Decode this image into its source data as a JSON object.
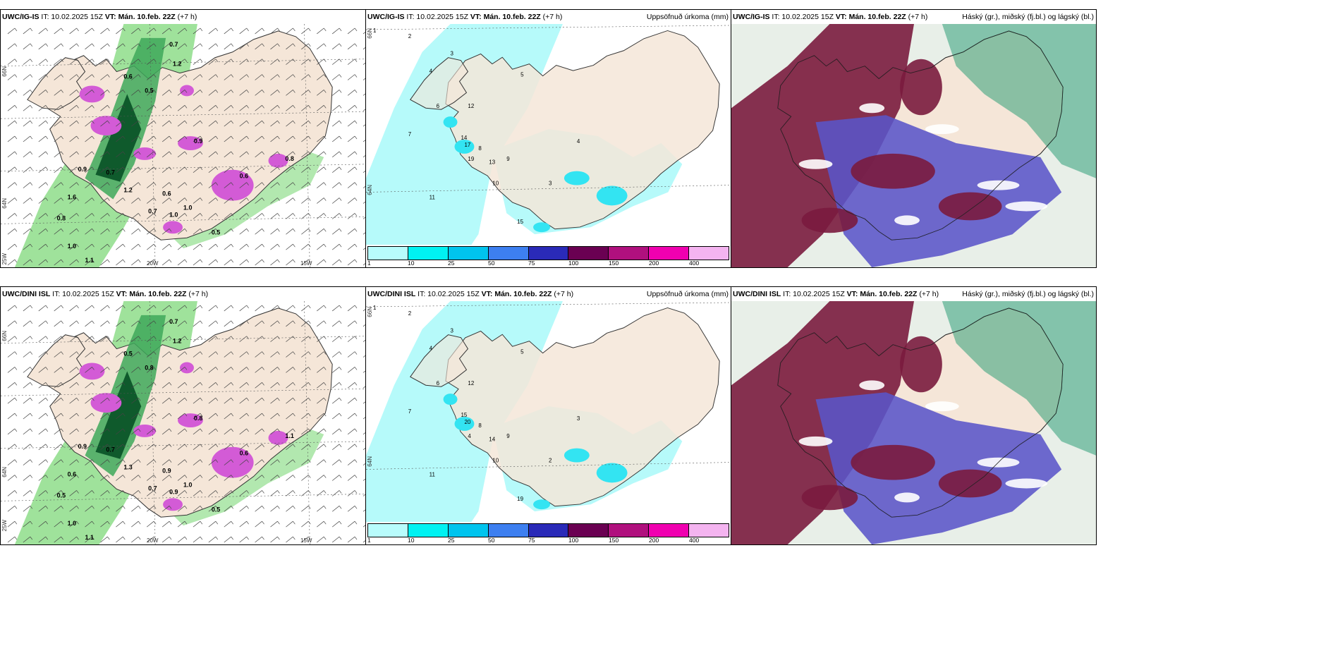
{
  "rows": [
    {
      "model": "UWC/IG-IS",
      "panels": [
        {
          "model": "UWC/IG-IS",
          "it": "IT: 10.02.2025 15Z",
          "vt": "VT: Mán. 10.feb. 22Z",
          "lead": "(+7 h)",
          "right_title": "",
          "labels": [
            "0.7",
            "0.6",
            "0.5",
            "0.9",
            "1.0",
            "1.1",
            "1.2",
            "1.6",
            "0.8",
            "0.7",
            "0.6",
            "1.0",
            "0.9",
            "0.6",
            "0.5",
            "0.7",
            "1.0",
            "0.8",
            "1.2"
          ],
          "axis": {
            "lat_top": "66N",
            "lat_mid": "64N",
            "lon_left": "25W",
            "lon_mid": "20W",
            "lon_right": "15W"
          }
        },
        {
          "model": "UWC/IG-IS",
          "it": "IT: 10.02.2025 15Z",
          "vt": "VT: Mán. 10.feb. 22Z",
          "lead": "(+7 h)",
          "right_title": "Uppsöfnuð úrkoma (mm)",
          "labels": [
            "1",
            "2",
            "3",
            "4",
            "5",
            "6",
            "7",
            "8",
            "9",
            "10",
            "11",
            "12",
            "13",
            "14",
            "15",
            "17",
            "19",
            "4",
            "3"
          ],
          "axis": {
            "lat_top": "66N",
            "lat_mid": "64N"
          }
        },
        {
          "model": "UWC/IG-IS",
          "it": "IT: 10.02.2025 15Z",
          "vt": "VT: Mán. 10.feb. 22Z",
          "lead": "(+7 h)",
          "right_title": "Háský (gr.), miðský (fj.bl.) og lágský (bl.)"
        }
      ]
    },
    {
      "model": "UWC/DINI ISL",
      "panels": [
        {
          "model": "UWC/DINI ISL",
          "it": "IT: 10.02.2025 15Z",
          "vt": "VT: Mán. 10.feb. 22Z",
          "lead": "(+7 h)",
          "right_title": "",
          "labels": [
            "0.7",
            "0.5",
            "0.8",
            "0.9",
            "1.0",
            "1.1",
            "1.2",
            "0.6",
            "0.5",
            "0.7",
            "0.9",
            "1.0",
            "0.8",
            "0.6",
            "0.5",
            "0.7",
            "0.9",
            "1.1",
            "1.3"
          ],
          "axis": {
            "lat_top": "66N",
            "lat_mid": "64N",
            "lon_left": "25W",
            "lon_mid": "20W",
            "lon_right": "15W"
          }
        },
        {
          "model": "UWC/DINI ISL",
          "it": "IT: 10.02.2025 15Z",
          "vt": "VT: Mán. 10.feb. 22Z",
          "lead": "(+7 h)",
          "right_title": "Uppsöfnuð úrkoma (mm)",
          "labels": [
            "1",
            "2",
            "3",
            "4",
            "5",
            "6",
            "7",
            "8",
            "9",
            "10",
            "11",
            "12",
            "14",
            "15",
            "19",
            "20",
            "4",
            "3",
            "2"
          ],
          "axis": {
            "lat_top": "66N",
            "lat_mid": "64N"
          }
        },
        {
          "model": "UWC/DINI ISL",
          "it": "IT: 10.02.2025 15Z",
          "vt": "VT: Mán. 10.feb. 22Z",
          "lead": "(+7 h)",
          "right_title": "Háský (gr.), miðský (fj.bl.) og lágský (bl.)"
        }
      ]
    }
  ],
  "legend": {
    "ticks": [
      "1",
      "10",
      "25",
      "50",
      "75",
      "100",
      "150",
      "200",
      "400"
    ],
    "colors": [
      "#b8fcfc",
      "#00f2f2",
      "#00c4ee",
      "#3d7ff0",
      "#2a2ab8",
      "#6a0052",
      "#b0107e",
      "#f000b0",
      "#f4b4f0"
    ]
  },
  "colors": {
    "land": "#f5e6d8",
    "light_green": "#9fe29b",
    "mid_green": "#3ea85a",
    "dark_green": "#0f5a2c",
    "magenta": "#d35bd6",
    "cyan_light": "#b6fafa",
    "cyan": "#33e4f2",
    "cloud_high": "#7a1b3e",
    "cloud_mid": "#5a55c8",
    "cloud_low": "#2f9e78",
    "cloud_bg": "#e8efe8"
  }
}
